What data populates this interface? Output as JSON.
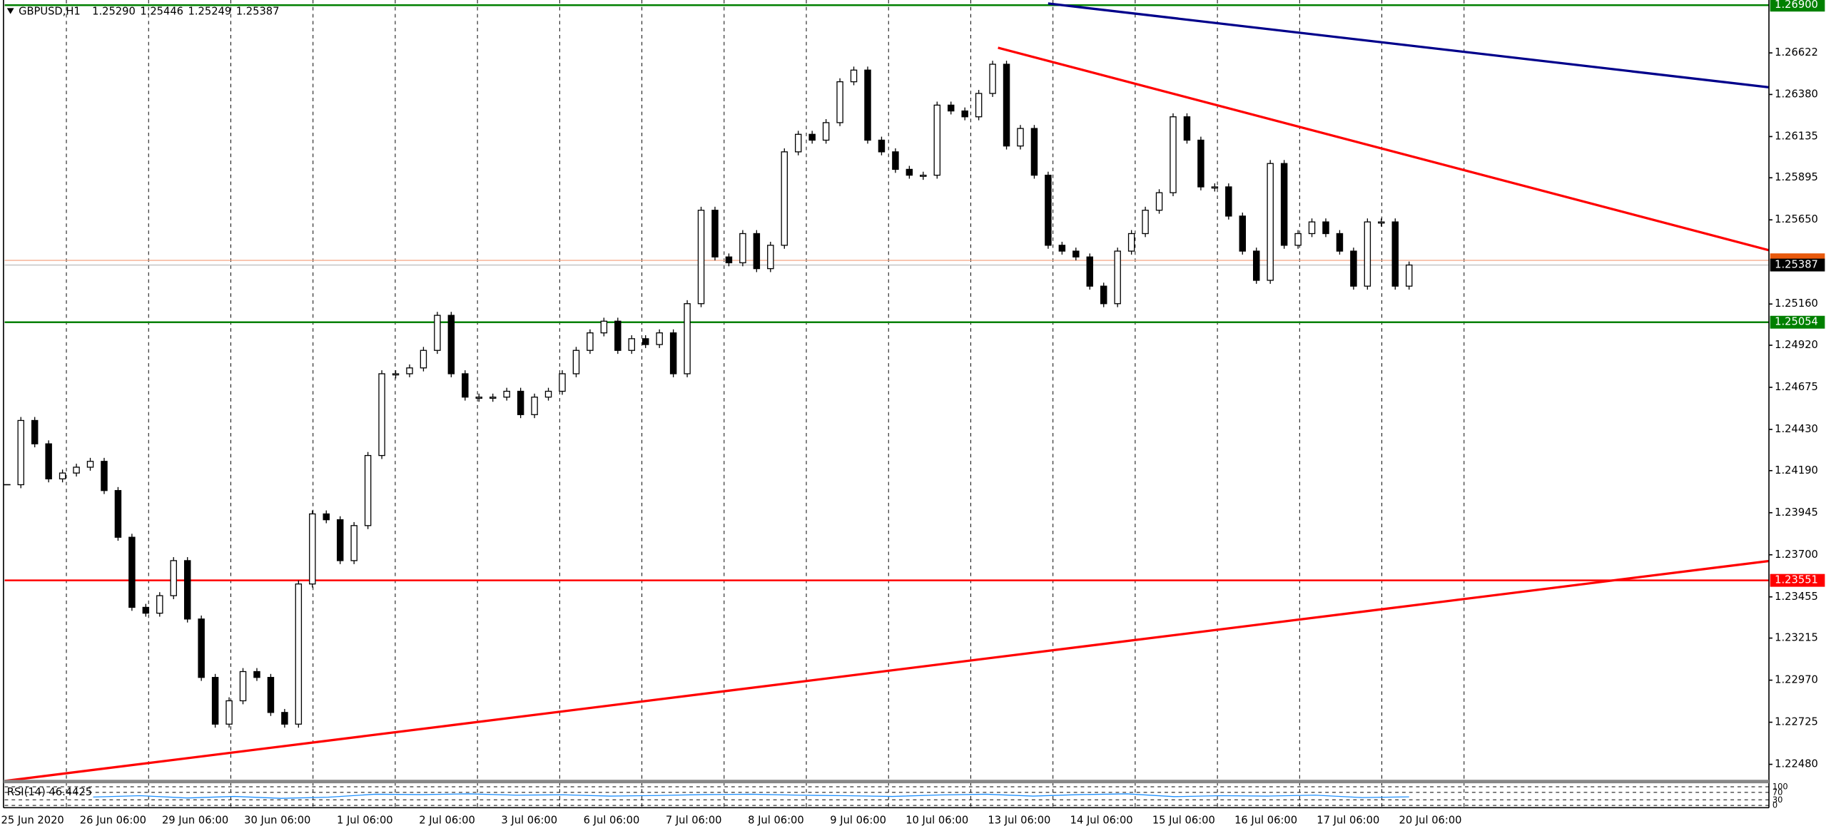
{
  "chart_data": {
    "type": "candlestick",
    "title": "GBPUSD,H1",
    "header_values": [
      {
        "value": 1.2529,
        "label": "1.25290"
      },
      {
        "value": 1.25446,
        "label": "1.25446"
      },
      {
        "value": 1.25249,
        "label": "1.25249"
      },
      {
        "value": 1.25387,
        "label": "1.25387"
      }
    ],
    "x_labels": [
      "25 Jun 2020",
      "26 Jun 06:00",
      "29 Jun 06:00",
      "30 Jun 06:00",
      "1 Jul 06:00",
      "2 Jul 06:00",
      "3 Jul 06:00",
      "6 Jul 06:00",
      "7 Jul 06:00",
      "8 Jul 06:00",
      "9 Jul 06:00",
      "10 Jul 06:00",
      "13 Jul 06:00",
      "14 Jul 06:00",
      "15 Jul 06:00",
      "16 Jul 06:00",
      "17 Jul 06:00",
      "20 Jul 06:00"
    ],
    "close": [
      1.24108,
      1.24482,
      1.24346,
      1.24142,
      1.24176,
      1.2421,
      1.24244,
      1.24074,
      1.23802,
      1.23394,
      1.2336,
      1.23462,
      1.23666,
      1.23326,
      1.22986,
      1.22714,
      1.2285,
      1.2302,
      1.22986,
      1.22782,
      1.22714,
      1.2353,
      1.23938,
      1.23904,
      1.23666,
      1.2387,
      1.24278,
      1.24754,
      1.24754,
      1.24788,
      1.2489,
      1.25094,
      1.24754,
      1.24618,
      1.24618,
      1.24618,
      1.24652,
      1.24516,
      1.24618,
      1.24652,
      1.24754,
      1.2489,
      1.24992,
      1.2506,
      1.2489,
      1.24958,
      1.24924,
      1.24992,
      1.24754,
      1.25162,
      1.25706,
      1.25434,
      1.254,
      1.2557,
      1.25366,
      1.25502,
      1.26046,
      1.26148,
      1.26114,
      1.26216,
      1.26454,
      1.26522,
      1.26114,
      1.26046,
      1.25944,
      1.2591,
      1.2591,
      1.26318,
      1.26284,
      1.2625,
      1.26386,
      1.26556,
      1.2608,
      1.26182,
      1.2591,
      1.25502,
      1.25468,
      1.25434,
      1.25264,
      1.25162,
      1.25468,
      1.2557,
      1.25706,
      1.25808,
      1.2625,
      1.26114,
      1.25842,
      1.25842,
      1.25672,
      1.25468,
      1.25298,
      1.25978,
      1.25502,
      1.2557,
      1.25638,
      1.2557,
      1.25468,
      1.25264,
      1.25638,
      1.25638,
      1.25264,
      1.25387
    ],
    "ylim": [
      1.2239,
      1.2693
    ],
    "yticks": [
      {
        "value": 1.26622,
        "label": "1.26622"
      },
      {
        "value": 1.2638,
        "label": "1.26380"
      },
      {
        "value": 1.26135,
        "label": "1.26135"
      },
      {
        "value": 1.25895,
        "label": "1.25895"
      },
      {
        "value": 1.2565,
        "label": "1.25650"
      },
      {
        "value": 1.2516,
        "label": "1.25160"
      },
      {
        "value": 1.2492,
        "label": "1.24920"
      },
      {
        "value": 1.24675,
        "label": "1.24675"
      },
      {
        "value": 1.2443,
        "label": "1.24430"
      },
      {
        "value": 1.2419,
        "label": "1.24190"
      },
      {
        "value": 1.23945,
        "label": "1.23945"
      },
      {
        "value": 1.237,
        "label": "1.23700"
      },
      {
        "value": 1.23455,
        "label": "1.23455"
      },
      {
        "value": 1.23215,
        "label": "1.23215"
      },
      {
        "value": 1.2297,
        "label": "1.22970"
      },
      {
        "value": 1.22725,
        "label": "1.22725"
      },
      {
        "value": 1.2248,
        "label": "1.22480"
      }
    ],
    "levels": [
      {
        "value": 1.269,
        "label": "1.26900",
        "color": "#008000"
      },
      {
        "value": 1.25054,
        "label": "1.25054",
        "color": "#008000"
      },
      {
        "value": 1.23551,
        "label": "1.23551",
        "color": "#ff0000"
      }
    ],
    "current": {
      "value": 1.25387,
      "label": "1.25387"
    },
    "rsi_title": "RSI(14) 46.4425",
    "rsi_values": [
      45,
      52,
      40,
      48,
      38,
      44,
      60,
      58,
      62,
      55,
      57,
      50,
      53,
      58,
      60,
      55,
      52,
      48,
      56,
      60,
      50,
      58,
      62,
      47,
      52,
      50,
      55,
      42,
      46
    ],
    "rsi_ylim": [
      0,
      100
    ],
    "rsi_ticks": [
      100,
      70,
      30,
      0
    ],
    "rsi_color": "#1e90ff"
  }
}
